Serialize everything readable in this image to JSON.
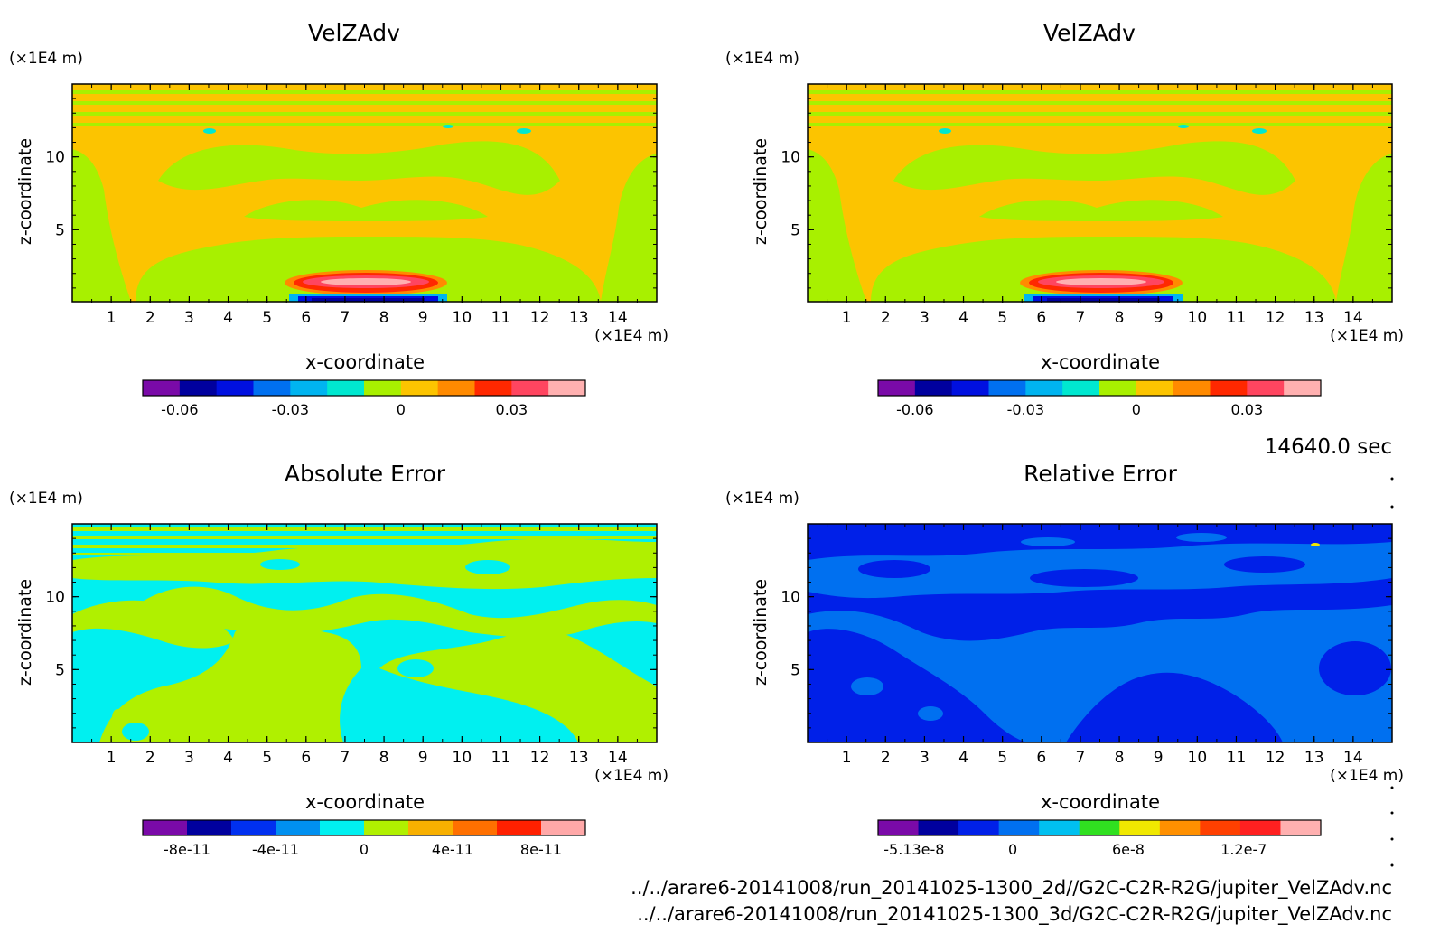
{
  "time_label": "14640.0 sec",
  "files": [
    "../../arare6-20141008/run_20141025-1300_2d//G2C-C2R-R2G/jupiter_VelZAdv.nc",
    "../../arare6-20141008/run_20141025-1300_3d/G2C-C2R-R2G/jupiter_VelZAdv.nc"
  ],
  "chart_data": [
    {
      "type": "heatmap",
      "title": "VelZAdv",
      "xlabel": "x-coordinate",
      "ylabel": "z-coordinate",
      "x_unit": "(×1E4 m)",
      "y_unit": "(×1E4 m)",
      "x_ticks": [
        "1",
        "2",
        "3",
        "4",
        "5",
        "6",
        "7",
        "8",
        "9",
        "10",
        "11",
        "12",
        "13",
        "14"
      ],
      "y_ticks": [
        "5",
        "10"
      ],
      "xlim": [
        0,
        15
      ],
      "ylim": [
        0,
        15
      ],
      "colorbar": {
        "colors": [
          "#7a0aa8",
          "#00009e",
          "#0010e0",
          "#0070f0",
          "#00b4f0",
          "#00e8d0",
          "#a8f000",
          "#fcc400",
          "#ff8a00",
          "#ff2800",
          "#ff4560",
          "#ffb0b0"
        ],
        "tick_labels": [
          "-0.06",
          "-0.03",
          "0",
          "0.03"
        ],
        "tick_values": [
          -0.06,
          -0.03,
          0,
          0.03
        ],
        "range": [
          -0.07,
          0.05
        ]
      }
    },
    {
      "type": "heatmap",
      "title": "VelZAdv",
      "xlabel": "x-coordinate",
      "ylabel": "z-coordinate",
      "x_unit": "(×1E4 m)",
      "y_unit": "(×1E4 m)",
      "x_ticks": [
        "1",
        "2",
        "3",
        "4",
        "5",
        "6",
        "7",
        "8",
        "9",
        "10",
        "11",
        "12",
        "13",
        "14"
      ],
      "y_ticks": [
        "5",
        "10"
      ],
      "xlim": [
        0,
        15
      ],
      "ylim": [
        0,
        15
      ],
      "colorbar": {
        "colors": [
          "#7a0aa8",
          "#00009e",
          "#0010e0",
          "#0070f0",
          "#00b4f0",
          "#00e8d0",
          "#a8f000",
          "#fcc400",
          "#ff8a00",
          "#ff2800",
          "#ff4560",
          "#ffb0b0"
        ],
        "tick_labels": [
          "-0.06",
          "-0.03",
          "0",
          "0.03"
        ],
        "tick_values": [
          -0.06,
          -0.03,
          0,
          0.03
        ],
        "range": [
          -0.07,
          0.05
        ]
      }
    },
    {
      "type": "heatmap",
      "title": "Absolute Error",
      "xlabel": "x-coordinate",
      "ylabel": "z-coordinate",
      "x_unit": "(×1E4 m)",
      "y_unit": "(×1E4 m)",
      "x_ticks": [
        "1",
        "2",
        "3",
        "4",
        "5",
        "6",
        "7",
        "8",
        "9",
        "10",
        "11",
        "12",
        "13",
        "14"
      ],
      "y_ticks": [
        "5",
        "10"
      ],
      "xlim": [
        0,
        15
      ],
      "ylim": [
        0,
        15
      ],
      "colorbar": {
        "colors": [
          "#7a0aa8",
          "#00009e",
          "#0030f0",
          "#0090f0",
          "#00f0f0",
          "#b0f000",
          "#f8b000",
          "#ff7000",
          "#ff2000",
          "#ffa8a8"
        ],
        "tick_labels": [
          "-8e-11",
          "-4e-11",
          "0",
          "4e-11",
          "8e-11"
        ],
        "tick_values": [
          -8e-11,
          -4e-11,
          0,
          4e-11,
          8e-11
        ],
        "range": [
          -1e-10,
          1e-10
        ]
      }
    },
    {
      "type": "heatmap",
      "title": "Relative Error",
      "xlabel": "x-coordinate",
      "ylabel": "z-coordinate",
      "x_unit": "(×1E4 m)",
      "y_unit": "(×1E4 m)",
      "x_ticks": [
        "1",
        "2",
        "3",
        "4",
        "5",
        "6",
        "7",
        "8",
        "9",
        "10",
        "11",
        "12",
        "13",
        "14"
      ],
      "y_ticks": [
        "5",
        "10"
      ],
      "xlim": [
        0,
        15
      ],
      "ylim": [
        0,
        15
      ],
      "colorbar": {
        "colors": [
          "#7a0aa8",
          "#00009e",
          "#0020e8",
          "#0070f0",
          "#00c0f0",
          "#30e020",
          "#f0e800",
          "#ff9000",
          "#ff4000",
          "#ff2020",
          "#ffb0b0"
        ],
        "tick_labels": [
          "-5.13e-8",
          "0",
          "6e-8",
          "1.2e-7"
        ],
        "tick_values": [
          -5.13e-08,
          0,
          6e-08,
          1.2e-07
        ],
        "range": [
          -7e-08,
          1.6e-07
        ]
      }
    }
  ]
}
